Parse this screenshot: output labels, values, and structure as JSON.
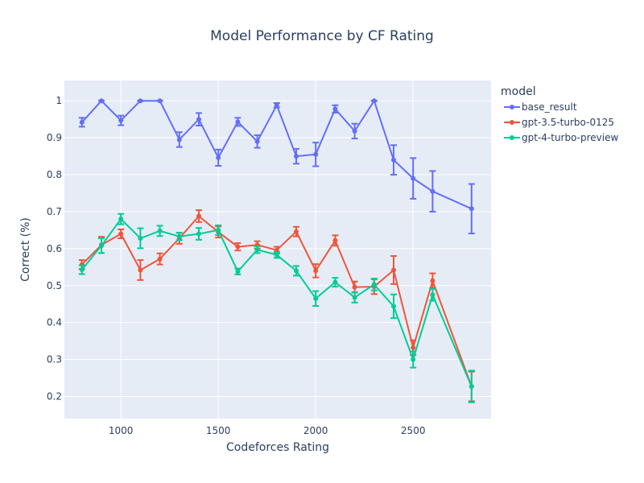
{
  "chart_data": {
    "type": "line",
    "title": "Model Performance by CF Rating",
    "xlabel": "Codeforces Rating",
    "ylabel": "Correct (%)",
    "xlim": [
      710,
      2900
    ],
    "ylim": [
      0.14,
      1.055
    ],
    "x_ticks": [
      1000,
      1500,
      2000,
      2500
    ],
    "y_ticks": [
      0.2,
      0.3,
      0.4,
      0.5,
      0.6,
      0.7,
      0.8,
      0.9,
      1
    ],
    "legend_title": "model",
    "legend_position": "right",
    "grid": true,
    "background": "#E5ECF6",
    "series": [
      {
        "name": "base_result",
        "color": "#636efa",
        "x": [
          800,
          900,
          1000,
          1100,
          1200,
          1300,
          1400,
          1500,
          1600,
          1700,
          1800,
          1900,
          2000,
          2100,
          2200,
          2300,
          2400,
          2500,
          2600,
          2800
        ],
        "y": [
          0.942,
          1.0,
          0.947,
          1.0,
          1.0,
          0.895,
          0.95,
          0.846,
          0.943,
          0.89,
          0.988,
          0.85,
          0.855,
          0.978,
          0.918,
          1.0,
          0.84,
          0.79,
          0.755,
          0.708
        ],
        "err": [
          0.012,
          0.0,
          0.013,
          0.0,
          0.0,
          0.02,
          0.017,
          0.022,
          0.011,
          0.017,
          0.006,
          0.02,
          0.032,
          0.01,
          0.02,
          0.0,
          0.04,
          0.055,
          0.055,
          0.067
        ]
      },
      {
        "name": "gpt-3.5-turbo-0125",
        "color": "#ef553b",
        "x": [
          800,
          900,
          1000,
          1100,
          1200,
          1300,
          1400,
          1500,
          1600,
          1700,
          1800,
          1900,
          2000,
          2100,
          2200,
          2300,
          2400,
          2500,
          2600,
          2800
        ],
        "y": [
          0.557,
          0.61,
          0.64,
          0.542,
          0.572,
          0.628,
          0.688,
          0.645,
          0.605,
          0.61,
          0.596,
          0.646,
          0.54,
          0.622,
          0.496,
          0.497,
          0.542,
          0.332,
          0.513,
          0.227
        ],
        "err": [
          0.012,
          0.022,
          0.012,
          0.027,
          0.015,
          0.015,
          0.016,
          0.015,
          0.01,
          0.01,
          0.009,
          0.013,
          0.018,
          0.014,
          0.015,
          0.02,
          0.038,
          0.02,
          0.02,
          0.04
        ]
      },
      {
        "name": "gpt-4-turbo-preview",
        "color": "#00cc96",
        "x": [
          800,
          900,
          1000,
          1100,
          1200,
          1300,
          1400,
          1500,
          1600,
          1700,
          1800,
          1900,
          2000,
          2100,
          2200,
          2300,
          2400,
          2500,
          2600,
          2800
        ],
        "y": [
          0.543,
          0.608,
          0.68,
          0.628,
          0.648,
          0.633,
          0.64,
          0.65,
          0.538,
          0.597,
          0.583,
          0.54,
          0.465,
          0.509,
          0.468,
          0.503,
          0.444,
          0.3,
          0.475,
          0.227
        ],
        "err": [
          0.012,
          0.02,
          0.014,
          0.027,
          0.014,
          0.01,
          0.016,
          0.013,
          0.008,
          0.009,
          0.008,
          0.013,
          0.02,
          0.012,
          0.014,
          0.016,
          0.032,
          0.022,
          0.016,
          0.043
        ]
      }
    ]
  }
}
